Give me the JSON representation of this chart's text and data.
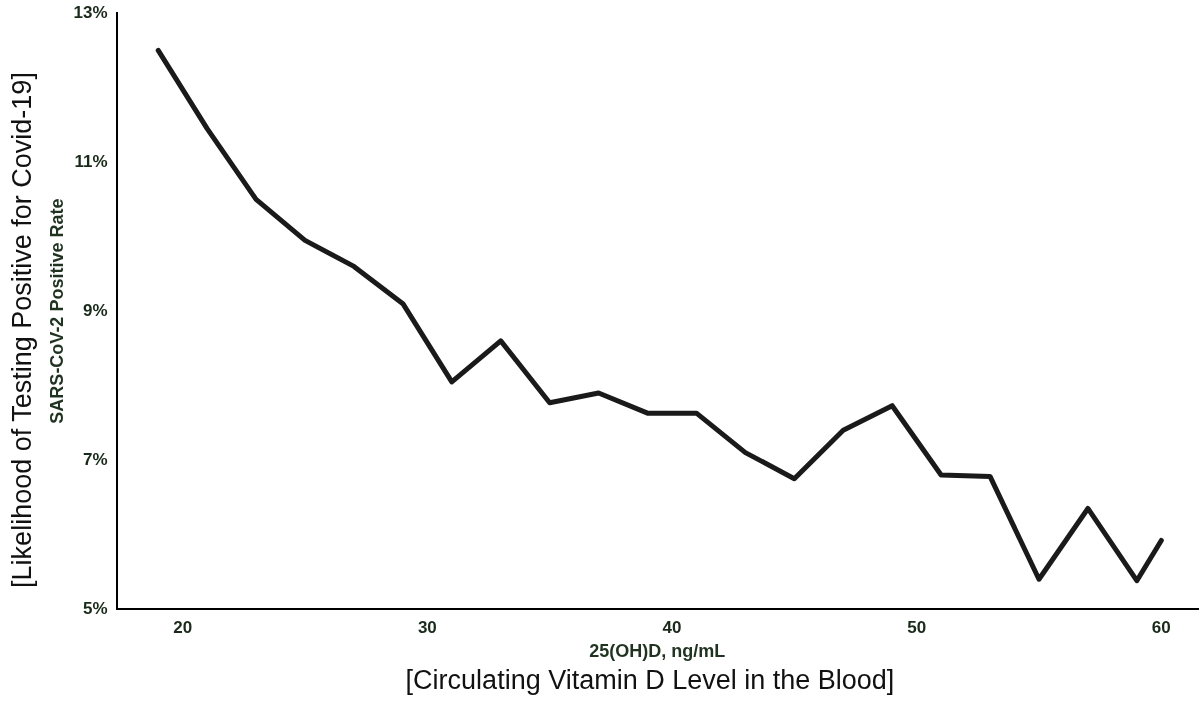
{
  "chart_data": {
    "type": "line",
    "xlabel": "25(OH)D, ng/mL",
    "ylabel": "SARS-CoV-2 Positive Rate",
    "annotations": [
      "[Likelihood of Testing Positive for Covid-19]",
      "[Circulating Vitamin D Level in the Blood]"
    ],
    "x": [
      19,
      21,
      23,
      25,
      27,
      29,
      31,
      33,
      35,
      37,
      39,
      41,
      43,
      45,
      47,
      49,
      51,
      53,
      55,
      57,
      59,
      60
    ],
    "series": [
      {
        "color": "#1a1a1a",
        "values": [
          12.5,
          11.45,
          10.5,
          9.95,
          9.6,
          9.1,
          8.05,
          8.6,
          7.77,
          7.9,
          7.63,
          7.63,
          7.1,
          6.75,
          7.4,
          7.73,
          6.8,
          6.78,
          5.4,
          6.35,
          5.38,
          5.92
        ]
      }
    ],
    "xlim": [
      17.3,
      61.5
    ],
    "ylim": [
      5,
      13
    ],
    "xticks": [
      20,
      30,
      40,
      50,
      60
    ],
    "yticks": [
      {
        "value": 5,
        "label": "5%"
      },
      {
        "value": 7,
        "label": "7%"
      },
      {
        "value": 9,
        "label": "9%"
      },
      {
        "value": 11,
        "label": "11%"
      },
      {
        "value": 13,
        "label": "13%"
      }
    ],
    "grid": false,
    "legend": false,
    "marker": "none",
    "line_style": "solid"
  }
}
